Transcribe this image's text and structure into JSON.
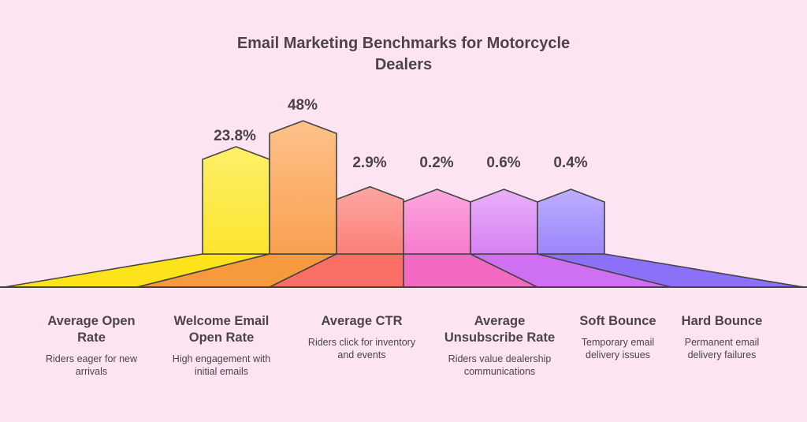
{
  "chart_data": {
    "type": "bar",
    "title": "Email Marketing Benchmarks for Motorcycle Dealers",
    "categories": [
      "Average Open Rate",
      "Welcome Email Open Rate",
      "Average CTR",
      "Average Unsubscribe Rate",
      "Soft Bounce",
      "Hard Bounce"
    ],
    "values": [
      23.8,
      48,
      2.9,
      0.2,
      0.6,
      0.4
    ],
    "value_labels": [
      "23.8%",
      "48%",
      "2.9%",
      "0.2%",
      "0.6%",
      "0.4%"
    ],
    "descriptions": [
      "Riders eager for new arrivals",
      "High engagement with initial emails",
      "Riders click for inventory and events",
      "Riders value dealership communications",
      "Temporary email delivery issues",
      "Permanent email delivery failures"
    ],
    "colors": [
      {
        "top": "#fdef6a",
        "bottom": "#fde52e",
        "floor": "#fde41a"
      },
      {
        "top": "#fec28a",
        "bottom": "#f8a050",
        "floor": "#f79a3e"
      },
      {
        "top": "#fda6a2",
        "bottom": "#fb8078",
        "floor": "#fa6e66"
      },
      {
        "top": "#fba8de",
        "bottom": "#f67ccc",
        "floor": "#f269c2"
      },
      {
        "top": "#e9b0f8",
        "bottom": "#d682f2",
        "floor": "#cf70f2"
      },
      {
        "top": "#bcaefd",
        "bottom": "#9c86fa",
        "floor": "#8c70f8"
      }
    ],
    "background": "#fde4f3",
    "legend": "none",
    "grid": false
  }
}
